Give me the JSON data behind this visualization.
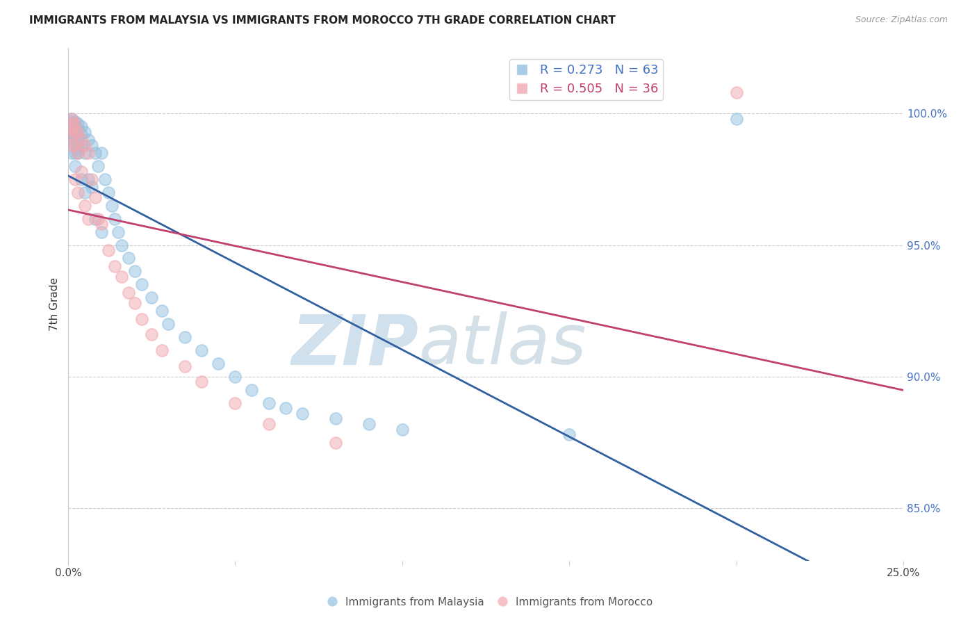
{
  "title": "IMMIGRANTS FROM MALAYSIA VS IMMIGRANTS FROM MOROCCO 7TH GRADE CORRELATION CHART",
  "source": "Source: ZipAtlas.com",
  "ylabel": "7th Grade",
  "ytick_labels": [
    "100.0%",
    "95.0%",
    "90.0%",
    "85.0%"
  ],
  "ytick_positions": [
    1.0,
    0.95,
    0.9,
    0.85
  ],
  "xlim": [
    0.0,
    0.25
  ],
  "ylim": [
    0.83,
    1.025
  ],
  "legend_r1": "R = 0.273",
  "legend_n1": "N = 63",
  "legend_r2": "R = 0.505",
  "legend_n2": "N = 36",
  "color_malaysia": "#92c0e0",
  "color_morocco": "#f0a8b0",
  "color_line_malaysia": "#3060a0",
  "color_line_morocco": "#c04070",
  "malaysia_x": [
    0.001,
    0.001,
    0.001,
    0.001,
    0.001,
    0.001,
    0.001,
    0.001,
    0.001,
    0.001,
    0.002,
    0.002,
    0.002,
    0.002,
    0.002,
    0.002,
    0.002,
    0.003,
    0.003,
    0.003,
    0.003,
    0.003,
    0.004,
    0.004,
    0.004,
    0.004,
    0.005,
    0.005,
    0.005,
    0.006,
    0.006,
    0.007,
    0.007,
    0.008,
    0.008,
    0.009,
    0.01,
    0.01,
    0.011,
    0.012,
    0.013,
    0.014,
    0.015,
    0.016,
    0.018,
    0.02,
    0.022,
    0.025,
    0.028,
    0.03,
    0.035,
    0.04,
    0.045,
    0.05,
    0.055,
    0.06,
    0.065,
    0.07,
    0.08,
    0.09,
    0.1,
    0.15,
    0.2
  ],
  "malaysia_y": [
    0.998,
    0.997,
    0.996,
    0.995,
    0.994,
    0.993,
    0.992,
    0.991,
    0.99,
    0.985,
    0.997,
    0.995,
    0.993,
    0.99,
    0.988,
    0.985,
    0.98,
    0.996,
    0.994,
    0.99,
    0.988,
    0.985,
    0.995,
    0.992,
    0.988,
    0.975,
    0.993,
    0.985,
    0.97,
    0.99,
    0.975,
    0.988,
    0.972,
    0.985,
    0.96,
    0.98,
    0.985,
    0.955,
    0.975,
    0.97,
    0.965,
    0.96,
    0.955,
    0.95,
    0.945,
    0.94,
    0.935,
    0.93,
    0.925,
    0.92,
    0.915,
    0.91,
    0.905,
    0.9,
    0.895,
    0.89,
    0.888,
    0.886,
    0.884,
    0.882,
    0.88,
    0.878,
    0.998
  ],
  "morocco_x": [
    0.001,
    0.001,
    0.001,
    0.001,
    0.001,
    0.002,
    0.002,
    0.002,
    0.002,
    0.003,
    0.003,
    0.003,
    0.004,
    0.004,
    0.005,
    0.005,
    0.006,
    0.006,
    0.007,
    0.008,
    0.009,
    0.01,
    0.012,
    0.014,
    0.016,
    0.018,
    0.02,
    0.022,
    0.025,
    0.028,
    0.035,
    0.04,
    0.05,
    0.06,
    0.08,
    0.2
  ],
  "morocco_y": [
    0.998,
    0.996,
    0.994,
    0.992,
    0.988,
    0.996,
    0.993,
    0.988,
    0.975,
    0.993,
    0.985,
    0.97,
    0.99,
    0.978,
    0.988,
    0.965,
    0.985,
    0.96,
    0.975,
    0.968,
    0.96,
    0.958,
    0.948,
    0.942,
    0.938,
    0.932,
    0.928,
    0.922,
    0.916,
    0.91,
    0.904,
    0.898,
    0.89,
    0.882,
    0.875,
    1.008
  ]
}
